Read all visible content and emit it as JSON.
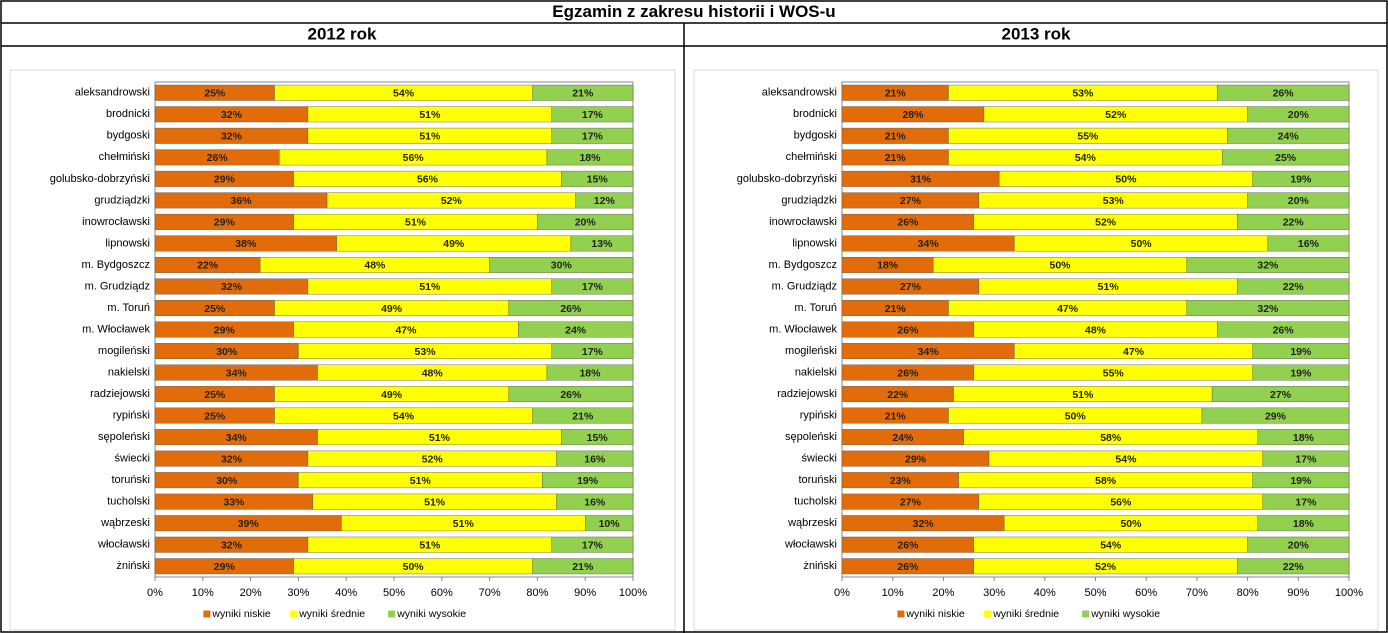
{
  "title": "Egzamin z zakresu historii i WOS-u",
  "chart_data": [
    {
      "type": "bar",
      "orientation": "horizontal",
      "stacked": true,
      "title": "2012 rok",
      "categories": [
        "aleksandrowski",
        "brodnicki",
        "bydgoski",
        "chełmiński",
        "golubsko-dobrzyński",
        "grudziądzki",
        "inowrocławski",
        "lipnowski",
        "m. Bydgoszcz",
        "m. Grudziądz",
        "m. Toruń",
        "m. Włocławek",
        "mogileński",
        "nakielski",
        "radziejowski",
        "rypiński",
        "sępoleński",
        "świecki",
        "toruński",
        "tucholski",
        "wąbrzeski",
        "włocławski",
        "żniński"
      ],
      "series": [
        {
          "name": "wyniki niskie",
          "color": "#e36c0a",
          "values": [
            25,
            32,
            32,
            26,
            29,
            36,
            29,
            38,
            22,
            32,
            25,
            29,
            30,
            34,
            25,
            25,
            34,
            32,
            30,
            33,
            39,
            32,
            29
          ],
          "value_labels": [
            "25%",
            "32%",
            "32%",
            "26%",
            "29%",
            "36%",
            "29%",
            "38%",
            "22%",
            "32%",
            "25%",
            "29%",
            "30%",
            "34%",
            "25%",
            "25%",
            "34%",
            "32%",
            "30%",
            "33%",
            "39%",
            "32%",
            "29%"
          ]
        },
        {
          "name": "wyniki  średnie",
          "color": "#ffff00",
          "values": [
            54,
            51,
            51,
            56,
            56,
            52,
            51,
            49,
            48,
            51,
            49,
            47,
            53,
            48,
            49,
            54,
            51,
            52,
            51,
            51,
            51,
            51,
            50
          ],
          "value_labels": [
            "54%",
            "51%",
            "51%",
            "56%",
            "56%",
            "52%",
            "51%",
            "49%",
            "48%",
            "51%",
            "49%",
            "47%",
            "53%",
            "48%",
            "49%",
            "54%",
            "51%",
            "52%",
            "51%",
            "51%",
            "51%",
            "51%",
            "50%"
          ]
        },
        {
          "name": "wyniki wysokie",
          "color": "#92d050",
          "values": [
            21,
            17,
            17,
            18,
            15,
            12,
            20,
            13,
            30,
            17,
            26,
            24,
            17,
            18,
            26,
            21,
            15,
            16,
            19,
            16,
            10,
            17,
            21
          ],
          "value_labels": [
            "21%",
            "17%",
            "17%",
            "18%",
            "15%",
            "12%",
            "20%",
            "13%",
            "30%",
            "17%",
            "26%",
            "24%",
            "17%",
            "18%",
            "26%",
            "21%",
            "15%",
            "16%",
            "19%",
            "16%",
            "10%",
            "17%",
            "21%"
          ]
        }
      ],
      "xlim": [
        0,
        100
      ],
      "xticks": [
        {
          "value": 0,
          "label": "0%"
        },
        {
          "value": 10,
          "label": "10%"
        },
        {
          "value": 20,
          "label": "20%"
        },
        {
          "value": 30,
          "label": "30%"
        },
        {
          "value": 40,
          "label": "40%"
        },
        {
          "value": 50,
          "label": "50%"
        },
        {
          "value": 60,
          "label": "60%"
        },
        {
          "value": 70,
          "label": "70%"
        },
        {
          "value": 80,
          "label": "80%"
        },
        {
          "value": 90,
          "label": "90%"
        },
        {
          "value": 100,
          "label": "100%"
        }
      ],
      "legend": "bottom"
    },
    {
      "type": "bar",
      "orientation": "horizontal",
      "stacked": true,
      "title": "2013 rok",
      "categories": [
        "aleksandrowski",
        "brodnicki",
        "bydgoski",
        "chełmiński",
        "golubsko-dobrzyński",
        "grudziądzki",
        "inowrocławski",
        "lipnowski",
        "m. Bydgoszcz",
        "m. Grudziądz",
        "m. Toruń",
        "m. Włocławek",
        "mogileński",
        "nakielski",
        "radziejowski",
        "rypiński",
        "sępoleński",
        "świecki",
        "toruński",
        "tucholski",
        "wąbrzeski",
        "włocławski",
        "żniński"
      ],
      "series": [
        {
          "name": "wyniki niskie",
          "color": "#e36c0a",
          "values": [
            21,
            28,
            21,
            21,
            31,
            27,
            26,
            34,
            18,
            27,
            21,
            26,
            34,
            26,
            22,
            21,
            24,
            29,
            23,
            27,
            32,
            26,
            26
          ],
          "value_labels": [
            "21%",
            "28%",
            "21%",
            "21%",
            "31%",
            "27%",
            "26%",
            "34%",
            "18%",
            "27%",
            "21%",
            "26%",
            "34%",
            "26%",
            "22%",
            "21%",
            "24%",
            "29%",
            "23%",
            "27%",
            "32%",
            "26%",
            "26%"
          ]
        },
        {
          "name": "wyniki  średnie",
          "color": "#ffff00",
          "values": [
            53,
            52,
            55,
            54,
            50,
            53,
            52,
            50,
            50,
            51,
            47,
            48,
            47,
            55,
            51,
            50,
            58,
            54,
            58,
            56,
            50,
            54,
            52
          ],
          "value_labels": [
            "53%",
            "52%",
            "55%",
            "54%",
            "50%",
            "53%",
            "52%",
            "50%",
            "50%",
            "51%",
            "47%",
            "48%",
            "47%",
            "55%",
            "51%",
            "50%",
            "58%",
            "54%",
            "58%",
            "56%",
            "50%",
            "54%",
            "52%"
          ]
        },
        {
          "name": "wyniki wysokie",
          "color": "#92d050",
          "values": [
            26,
            20,
            24,
            25,
            19,
            20,
            22,
            16,
            32,
            22,
            32,
            26,
            19,
            19,
            27,
            29,
            18,
            17,
            19,
            17,
            18,
            20,
            22
          ],
          "value_labels": [
            "26%",
            "20%",
            "24%",
            "25%",
            "19%",
            "20%",
            "22%",
            "16%",
            "32%",
            "22%",
            "32%",
            "26%",
            "19%",
            "19%",
            "27%",
            "29%",
            "18%",
            "17%",
            "19%",
            "17%",
            "18%",
            "20%",
            "22%"
          ]
        }
      ],
      "xlim": [
        0,
        100
      ],
      "xticks": [
        {
          "value": 0,
          "label": "0%"
        },
        {
          "value": 10,
          "label": "10%"
        },
        {
          "value": 20,
          "label": "20%"
        },
        {
          "value": 30,
          "label": "30%"
        },
        {
          "value": 40,
          "label": "40%"
        },
        {
          "value": 50,
          "label": "50%"
        },
        {
          "value": 60,
          "label": "60%"
        },
        {
          "value": 70,
          "label": "70%"
        },
        {
          "value": 80,
          "label": "80%"
        },
        {
          "value": 90,
          "label": "90%"
        },
        {
          "value": 100,
          "label": "100%"
        }
      ],
      "legend": "bottom"
    }
  ]
}
